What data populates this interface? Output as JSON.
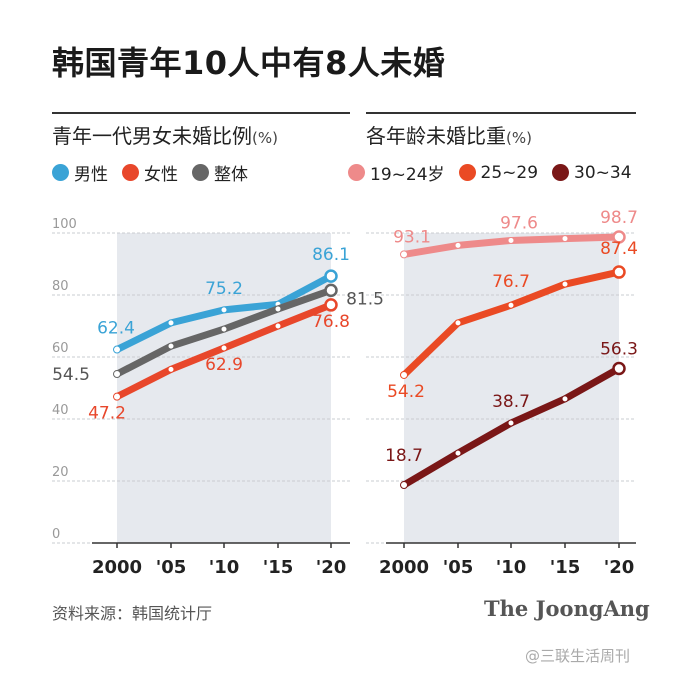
{
  "page_title": "韩国青年10人中有8人未婚",
  "source": "资料来源：韩国统计厅",
  "brand": "The JoongAng",
  "watermark": "@三联生活周刊",
  "colors": {
    "male": "#3aa3d6",
    "female": "#e8472b",
    "overall": "#666666",
    "age_19_24": "#ee8a8a",
    "age_25_29": "#ea4a24",
    "age_30_34": "#7a1717",
    "shade": "#e6e9ee"
  },
  "chart_data": [
    {
      "type": "line",
      "title": "青年一代男女未婚比例",
      "unit": "(%)",
      "categories": [
        "2000",
        "'05",
        "'10",
        "'15",
        "'20"
      ],
      "ylim": [
        0,
        100
      ],
      "yticks": [
        "0",
        "20",
        "40",
        "60",
        "80",
        "100"
      ],
      "grid": true,
      "legend": "top-left",
      "series": [
        {
          "name": "男性",
          "color_key": "male",
          "values": [
            62.4,
            71,
            75.2,
            77,
            86.1
          ],
          "labels": [
            "62.4",
            "",
            "75.2",
            "",
            "86.1"
          ]
        },
        {
          "name": "女性",
          "color_key": "female",
          "values": [
            47.2,
            56,
            62.9,
            70,
            76.8
          ],
          "labels": [
            "47.2",
            "",
            "62.9",
            "",
            "76.8"
          ]
        },
        {
          "name": "整体",
          "color_key": "overall",
          "values": [
            54.5,
            63.5,
            69,
            75.5,
            81.5
          ],
          "labels": [
            "54.5",
            "",
            "",
            "",
            "81.5"
          ]
        }
      ]
    },
    {
      "type": "line",
      "title": "各年龄未婚比重",
      "unit": "(%)",
      "categories": [
        "2000",
        "'05",
        "'10",
        "'15",
        "'20"
      ],
      "ylim": [
        0,
        100
      ],
      "grid": true,
      "legend": "top-left",
      "series": [
        {
          "name": "19~24岁",
          "color_key": "age_19_24",
          "values": [
            93.1,
            96,
            97.6,
            98.2,
            98.7
          ],
          "labels": [
            "93.1",
            "",
            "97.6",
            "",
            "98.7"
          ]
        },
        {
          "name": "25~29",
          "color_key": "age_25_29",
          "values": [
            54.2,
            71,
            76.7,
            83.5,
            87.4
          ],
          "labels": [
            "54.2",
            "",
            "76.7",
            "",
            "87.4"
          ]
        },
        {
          "name": "30~34",
          "color_key": "age_30_34",
          "values": [
            18.7,
            29,
            38.7,
            46.5,
            56.3
          ],
          "labels": [
            "18.7",
            "",
            "38.7",
            "",
            "56.3"
          ]
        }
      ]
    }
  ]
}
